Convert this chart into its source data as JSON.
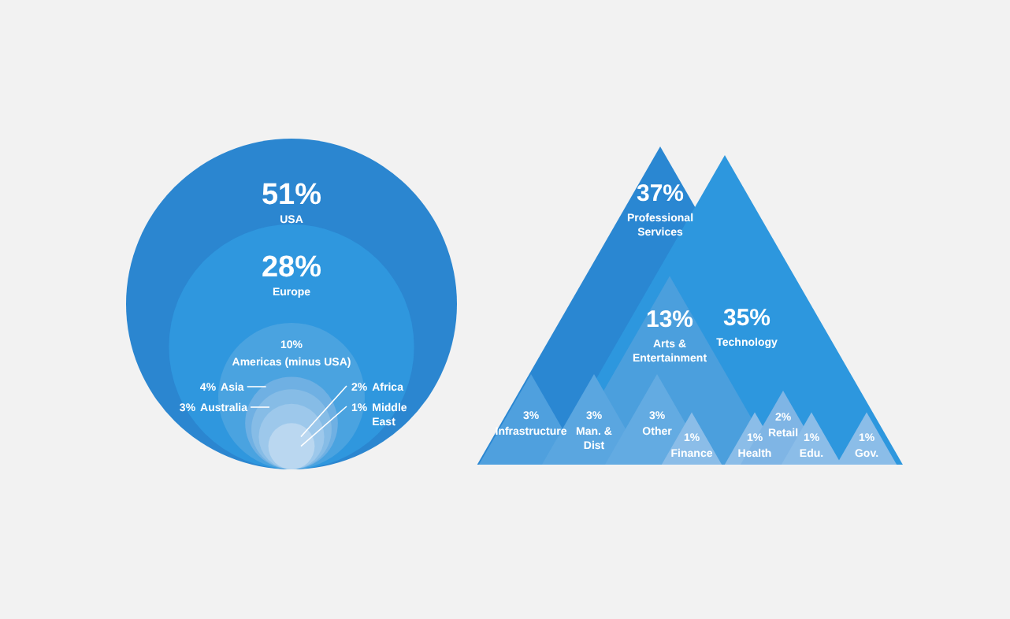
{
  "chart_data": [
    {
      "type": "other",
      "categories": [
        "USA",
        "Europe",
        "Americas (minus USA)",
        "Asia",
        "Australia",
        "Africa",
        "Middle East"
      ],
      "values": [
        51,
        28,
        10,
        4,
        3,
        2,
        1
      ],
      "value_labels": [
        "51%",
        "28%",
        "10%",
        "4%",
        "3%",
        "2%",
        "1%"
      ],
      "colors": [
        "#2b86d0",
        "#2f97de",
        "#4aa3e0",
        "#6fb0e3",
        "#86bce6",
        "#9dc8eb",
        "#bad7f0"
      ]
    },
    {
      "type": "other",
      "categories": [
        "Professional Services",
        "Technology",
        "Arts & Entertainment",
        "Infrastructure",
        "Man. & Dist",
        "Other",
        "Finance",
        "Health",
        "Retail",
        "Edu.",
        "Gov."
      ],
      "values": [
        37,
        35,
        13,
        3,
        3,
        3,
        1,
        1,
        2,
        1,
        1
      ],
      "value_labels": [
        "37%",
        "35%",
        "13%",
        "3%",
        "3%",
        "3%",
        "1%",
        "1%",
        "2%",
        "1%",
        "1%"
      ],
      "colors": [
        "#2a87d2",
        "#2d97de",
        "#4b9fdd",
        "#4fa0de",
        "#5aa6e0",
        "#63abe2",
        "#8bbde8",
        "#8bbde8",
        "#7fb5e5",
        "#8bbde8",
        "#8bbde8"
      ]
    }
  ]
}
